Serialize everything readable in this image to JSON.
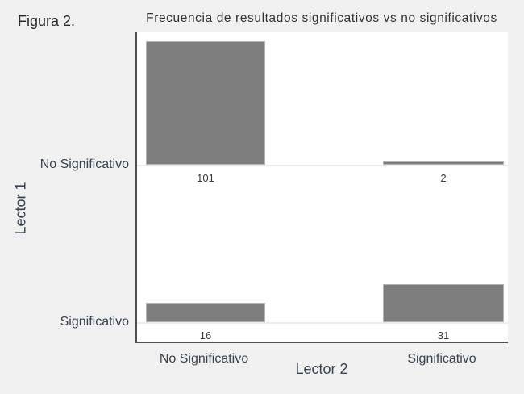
{
  "figure_label": "Figura 2.",
  "chart_data": {
    "type": "bar",
    "variant": "2x2-facet-frequency-grid",
    "title": "Frecuencia de resultados significativos vs no significativos",
    "xlabel": "Lector 2",
    "ylabel": "Lector 1",
    "x_categories": [
      "No Significativo",
      "Significativo"
    ],
    "y_categories": [
      "No Significativo",
      "Significativo"
    ],
    "cells": [
      {
        "row": "No Significativo",
        "col": "No Significativo",
        "value": 101
      },
      {
        "row": "No Significativo",
        "col": "Significativo",
        "value": 2
      },
      {
        "row": "Significativo",
        "col": "No Significativo",
        "value": 16
      },
      {
        "row": "Significativo",
        "col": "Significativo",
        "value": 31
      }
    ],
    "bar_color": "#7d7d7d",
    "background_color": "#f0f0f0",
    "panel_color": "#ffffff",
    "axis_line_color": "#4f4f4f",
    "text_color": "#39424d",
    "grid": "baseline-only",
    "legend": "none"
  }
}
